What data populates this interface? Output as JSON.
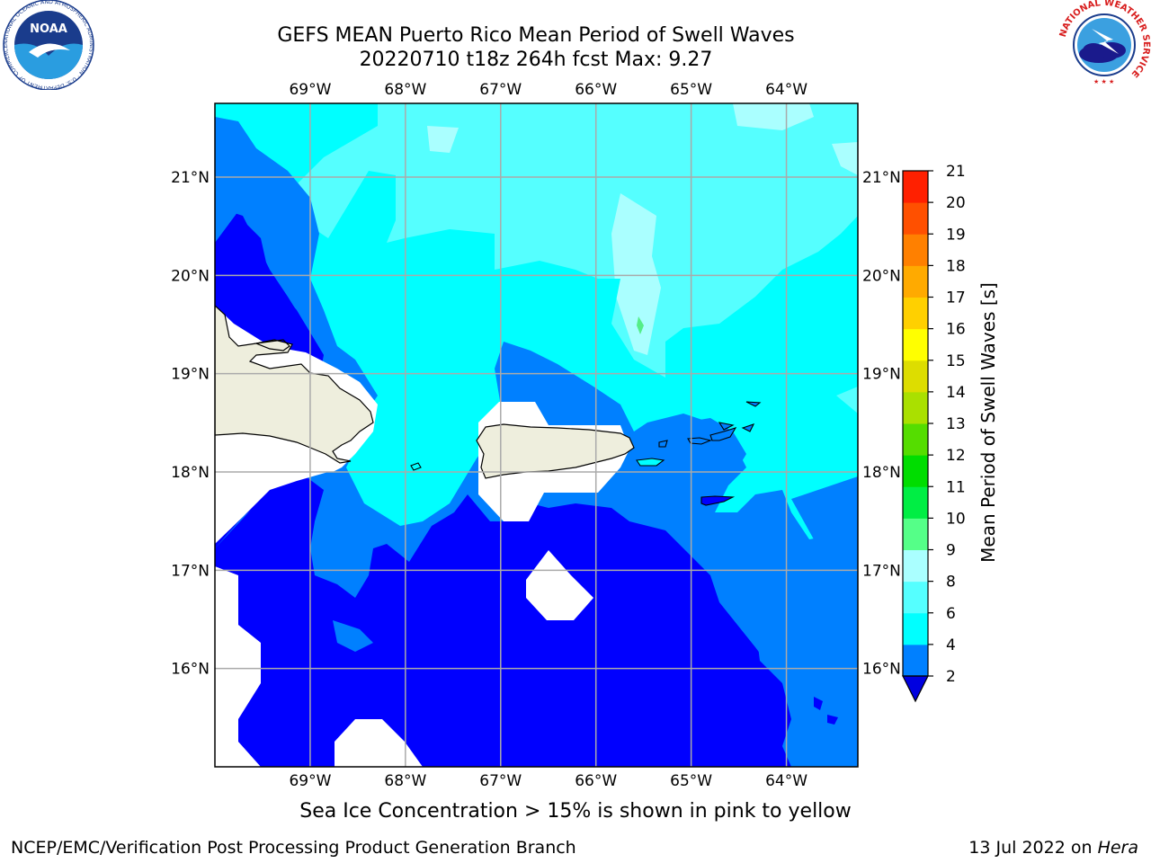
{
  "header": {
    "title_line1": "GEFS MEAN Puerto Rico Mean Period of Swell Waves",
    "title_line2": "20220710 t18z 264h fcst   Max: 9.27"
  },
  "logos": {
    "noaa_text": "NOAA",
    "noaa_ring": "NATIONAL OCEANIC AND ATMOSPHERIC ADMINISTRATION · U.S. DEPARTMENT OF COMMERCE",
    "nws_ring": "NATIONAL WEATHER SERVICE"
  },
  "chart_data": {
    "type": "heatmap",
    "variable": "Mean Period of Swell Waves [s]",
    "lon_ticks": [
      "69°W",
      "68°W",
      "67°W",
      "66°W",
      "65°W",
      "64°W"
    ],
    "lon_values": [
      -69,
      -68,
      -67,
      -66,
      -65,
      -64
    ],
    "lat_ticks": [
      "21°N",
      "20°N",
      "19°N",
      "18°N",
      "17°N",
      "16°N"
    ],
    "lat_values": [
      21,
      20,
      19,
      18,
      17,
      16
    ],
    "xlim": [
      -70,
      -63.25
    ],
    "ylim": [
      15,
      21.75
    ],
    "grid": true,
    "colorbar": {
      "label": "Mean Period of Swell Waves [s]",
      "tick_labels": [
        "2",
        "4",
        "6",
        "8",
        "9",
        "10",
        "11",
        "12",
        "13",
        "14",
        "15",
        "16",
        "17",
        "18",
        "19",
        "20",
        "21"
      ],
      "levels": [
        2,
        4,
        6,
        8,
        9,
        10,
        11,
        12,
        13,
        14,
        15,
        16,
        17,
        18,
        19,
        20,
        21
      ],
      "colors": [
        "#0000ff",
        "#0080ff",
        "#00ffff",
        "#55ffff",
        "#aaffff",
        "#55ff88",
        "#00ee44",
        "#00dd00",
        "#55dd00",
        "#aae000",
        "#dddd00",
        "#ffff00",
        "#ffd000",
        "#ffaa00",
        "#ff8000",
        "#ff5000",
        "#ff2000",
        "#ff0000"
      ],
      "extend": "min",
      "extend_color": "#0000e0"
    },
    "max_value": 9.27
  },
  "footer": {
    "note": "Sea Ice Concentration > 15% is shown in pink to yellow",
    "credit_left": "NCEP/EMC/Verification Post Processing Product Generation Branch",
    "credit_date": "13 Jul 2022 on ",
    "credit_host": "Hera"
  }
}
